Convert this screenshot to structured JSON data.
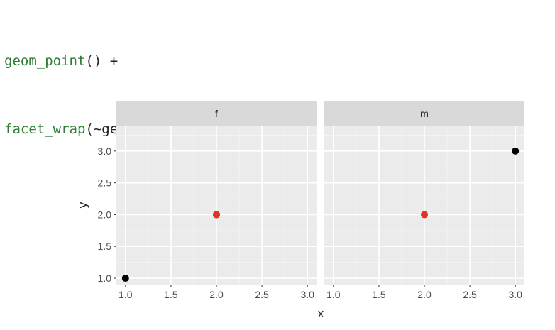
{
  "code": {
    "line1": {
      "fn": "geom_point",
      "rest": "() +"
    },
    "line2": {
      "fn": "facet_wrap",
      "rest": "(~gender)"
    }
  },
  "colors": {
    "panel_bg": "#ebebeb",
    "strip_bg": "#d9d9d9",
    "grid_major": "#ffffff",
    "grid_minor": "#f5f5f5",
    "axis_text": "#4d4d4d",
    "point_black": "#000000",
    "point_red": "#e0312b"
  },
  "chart_data": {
    "type": "scatter",
    "title": "",
    "xlabel": "x",
    "ylabel": "y",
    "xlim": [
      0.9,
      3.1
    ],
    "ylim": [
      0.9,
      3.4
    ],
    "x_ticks": [
      {
        "value": 1.0,
        "label": "1.0"
      },
      {
        "value": 1.5,
        "label": "1.5"
      },
      {
        "value": 2.0,
        "label": "2.0"
      },
      {
        "value": 2.5,
        "label": "2.5"
      },
      {
        "value": 3.0,
        "label": "3.0"
      }
    ],
    "y_ticks": [
      {
        "value": 1.0,
        "label": "1.0"
      },
      {
        "value": 1.5,
        "label": "1.5"
      },
      {
        "value": 2.0,
        "label": "2.0"
      },
      {
        "value": 2.5,
        "label": "2.5"
      },
      {
        "value": 3.0,
        "label": "3.0"
      }
    ],
    "grid": true,
    "facet_variable": "gender",
    "facets": [
      {
        "label": "f",
        "points": [
          {
            "x": 1,
            "y": 1,
            "color": "#000000"
          },
          {
            "x": 2,
            "y": 2,
            "color": "#000000"
          },
          {
            "x": 2,
            "y": 2,
            "color": "#e0312b"
          }
        ]
      },
      {
        "label": "m",
        "points": [
          {
            "x": 2,
            "y": 2,
            "color": "#e0312b"
          },
          {
            "x": 3,
            "y": 3,
            "color": "#000000"
          }
        ]
      }
    ]
  }
}
